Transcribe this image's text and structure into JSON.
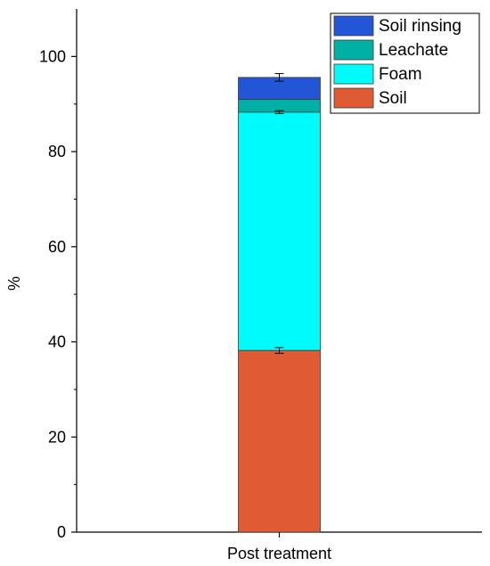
{
  "chart_data": {
    "type": "bar",
    "stacked": true,
    "categories": [
      "Post treatment"
    ],
    "ylabel": "%",
    "xlabel": "",
    "ylim": [
      0,
      110
    ],
    "yticks": [
      0,
      20,
      40,
      60,
      80,
      100
    ],
    "grid": false,
    "legend_position": "top-right",
    "series": [
      {
        "name": "Soil",
        "values": [
          38.2
        ],
        "error": [
          0.6
        ],
        "color": "#e05a33"
      },
      {
        "name": "Foam",
        "values": [
          50.1
        ],
        "error": [
          0.3
        ],
        "color": "#00fbfb"
      },
      {
        "name": "Leachate",
        "values": [
          2.7
        ],
        "error": [
          0
        ],
        "color": "#00b0a4"
      },
      {
        "name": "Soil rinsing",
        "values": [
          4.6
        ],
        "error": [
          0.8
        ],
        "color": "#2356d6"
      }
    ],
    "legend_order": [
      "Soil rinsing",
      "Leachate",
      "Foam",
      "Soil"
    ]
  }
}
